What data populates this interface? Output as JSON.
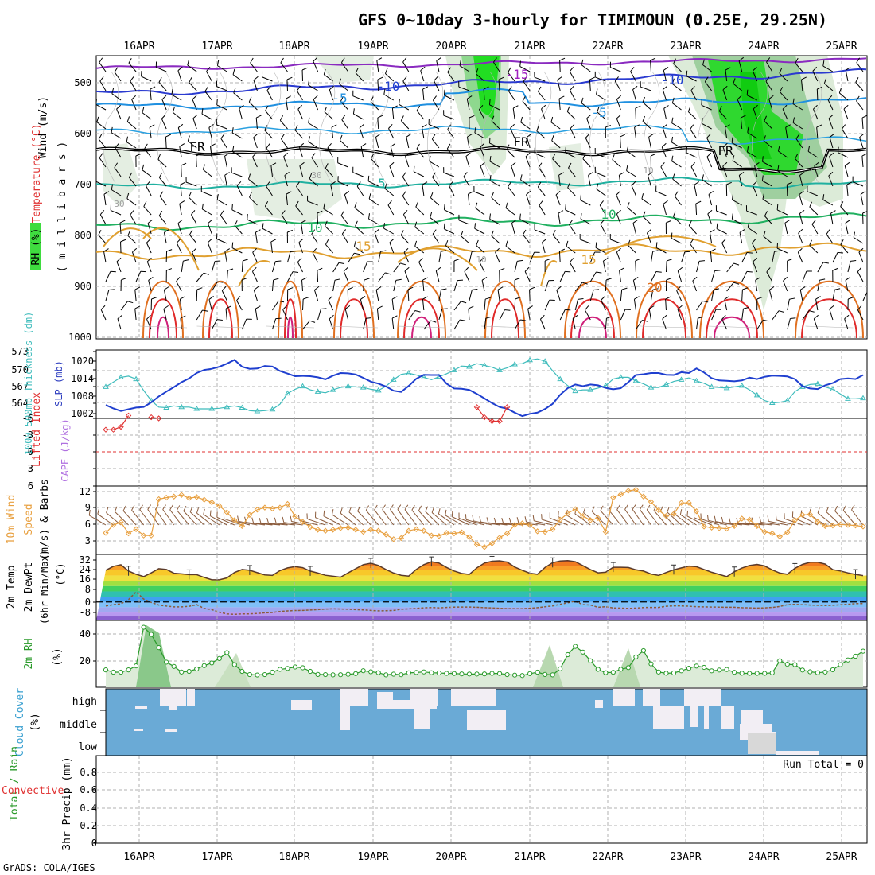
{
  "header": {
    "title": "GFS 0~10day 3-hourly for TIMIMOUN (0.25E, 29.25N)",
    "credit": "GrADS: COLA/IGES"
  },
  "days": [
    "16APR",
    "17APR",
    "18APR",
    "19APR",
    "20APR",
    "21APR",
    "22APR",
    "23APR",
    "24APR",
    "25APR"
  ],
  "colors": {
    "grid": "#b0b0b0",
    "thickness": "#3fbcbc",
    "slp": "#1f3fcf",
    "wind_speed": "#e8a040",
    "barb": "#8a5a3a",
    "rh2m": "#2a9a2a",
    "rh2m_fill": "#dcebd8",
    "cloud_bg": "#6aaad6",
    "cloud_fill": "#f2eef4",
    "lifted_index": "#e03030",
    "dewpoint": "#8a5a3a",
    "temp_line": "#5a3a2a",
    "fr_line": "#000000"
  },
  "panels": {
    "upper": {
      "ylabel_wind": "Wind (m/s)",
      "ylabel_temp": "Temperature (°C)",
      "ylabel_rh": "RH (%)",
      "ylabel_mb": "( m i l l i b a r s )",
      "levels": [
        500,
        600,
        700,
        800,
        900,
        1000
      ],
      "contour_labels": [
        {
          "text": "-15",
          "color": "#a020c0"
        },
        {
          "text": "-10",
          "color": "#2040d0"
        },
        {
          "text": "-10",
          "color": "#2040d0"
        },
        {
          "text": "-5",
          "color": "#2090e0"
        },
        {
          "text": "-5",
          "color": "#2090e0"
        },
        {
          "text": "FR",
          "color": "#000000"
        },
        {
          "text": "FR",
          "color": "#000000"
        },
        {
          "text": "FR",
          "color": "#000000"
        },
        {
          "text": "5",
          "color": "#20b0a0"
        },
        {
          "text": "10",
          "color": "#20b060"
        },
        {
          "text": "10",
          "color": "#20b060"
        },
        {
          "text": "15",
          "color": "#e0a030"
        },
        {
          "text": "15",
          "color": "#e0a030"
        },
        {
          "text": "20",
          "color": "#e07020"
        },
        {
          "text": "30",
          "color": "#a0a0a0"
        },
        {
          "text": "30",
          "color": "#a0a0a0"
        },
        {
          "text": "10",
          "color": "#a0a0a0"
        },
        {
          "text": "10",
          "color": "#a0a0a0"
        }
      ]
    },
    "thickness": {
      "ylabel_left": "1000-500mb Thickness (dm)",
      "ylabel_right": "SLP (mb)",
      "left_ticks": [
        "573",
        "570",
        "567",
        "564"
      ],
      "right_ticks": [
        "1020",
        "1014",
        "1008",
        "1002"
      ]
    },
    "stability": {
      "ylabel_li": "Lifted Index",
      "ylabel_cape": "CAPE (J/kg)",
      "ticks": [
        "-6",
        "-3",
        "0",
        "3",
        "6"
      ]
    },
    "wind10": {
      "ylabel_a": "10m Wind",
      "ylabel_b": "Speed",
      "ylabel_c": "(m/s) & Barbs",
      "ticks": [
        "12",
        "9",
        "6",
        "3"
      ]
    },
    "temp2m": {
      "ylabel_a": "2m Temp",
      "ylabel_b": "2m DewPt",
      "ylabel_c": "(6hr Min/Max)",
      "ylabel_unit": "(°C)",
      "ticks": [
        "32",
        "24",
        "16",
        "8",
        "0",
        "-8"
      ]
    },
    "rh2m": {
      "ylabel": "2m RH",
      "unit": "(%)",
      "ticks": [
        "40",
        "20"
      ]
    },
    "cloud": {
      "ylabel": "Cloud Cover",
      "unit": "(%)",
      "rows": [
        "high",
        "middle",
        "low"
      ]
    },
    "precip": {
      "ylabel_a": "Total / Rain",
      "ylabel_b": "Convective",
      "ylabel_c": "3hr Precip (mm)",
      "ticks": [
        "0.8",
        "0.6",
        "0.4",
        "0.2",
        "0"
      ],
      "run_total": "Run Total = 0"
    }
  },
  "chart_data": [
    {
      "type": "line",
      "title": "1000-500mb Thickness (dm) / SLP (mb)",
      "series": [
        {
          "name": "1000-500mb Thickness",
          "axis": "left",
          "ylim": [
            561.5,
            573
          ],
          "values": [
            566.8,
            567.6,
            568.4,
            568.6,
            568.1,
            566.2,
            564.5,
            563.4,
            563.3,
            563.6,
            563.4,
            563.4,
            563.1,
            563.1,
            563.1,
            563.2,
            563.4,
            563.6,
            563.3,
            562.8,
            562.7,
            562.8,
            563.0,
            563.9,
            565.7,
            566.4,
            566.9,
            566.3,
            566.0,
            565.8,
            566.3,
            566.7,
            566.9,
            566.8,
            566.7,
            566.4,
            566.2,
            566.9,
            568.0,
            568.9,
            569.1,
            568.8,
            568.4,
            568.0,
            568.5,
            569.0,
            569.6,
            570.3,
            570.2,
            570.7,
            570.4,
            570.1,
            569.6,
            570.0,
            570.6,
            570.7,
            571.3,
            571.5,
            571.1,
            569.5,
            568.1,
            567.0,
            566.1,
            566.3,
            566.3,
            566.6,
            567.0,
            568.1,
            568.4,
            568.4,
            567.8,
            567.3,
            566.7,
            566.7,
            567.2,
            567.7,
            568.0,
            568.3,
            567.8,
            567.4,
            566.8,
            566.7,
            566.6,
            566.8,
            567.0,
            566.3,
            565.4,
            564.5,
            564.1,
            564.2,
            564.5,
            566.0,
            566.8,
            567.2,
            567.3,
            566.8,
            566.4,
            565.6,
            564.8,
            564.8,
            564.9
          ]
        },
        {
          "name": "SLP",
          "axis": "right",
          "ylim": [
            1001,
            1025
          ],
          "values": [
            1005.7,
            1004.5,
            1003.6,
            1004.2,
            1004.8,
            1005.0,
            1006.6,
            1008.7,
            1010.4,
            1012.0,
            1013.7,
            1015.0,
            1016.9,
            1018.0,
            1018.4,
            1019.1,
            1020.2,
            1021.5,
            1019.1,
            1018.4,
            1018.5,
            1019.4,
            1019.2,
            1017.6,
            1016.7,
            1015.8,
            1015.9,
            1015.8,
            1015.4,
            1014.7,
            1016.0,
            1016.9,
            1016.8,
            1016.4,
            1015.2,
            1013.9,
            1013.2,
            1012.2,
            1010.7,
            1010.3,
            1012.4,
            1014.9,
            1016.3,
            1016.2,
            1016.2,
            1013.2,
            1011.5,
            1011.4,
            1011.0,
            1009.6,
            1008.0,
            1006.4,
            1005.0,
            1004.4,
            1003.0,
            1001.8,
            1002.6,
            1003.0,
            1004.3,
            1006.1,
            1009.3,
            1011.6,
            1012.9,
            1012.3,
            1012.9,
            1012.6,
            1011.7,
            1011.2,
            1011.6,
            1013.7,
            1016.2,
            1016.5,
            1016.9,
            1016.9,
            1016.3,
            1016.2,
            1017.2,
            1016.9,
            1018.5,
            1017.1,
            1015.1,
            1014.3,
            1014.2,
            1014.0,
            1014.3,
            1015.3,
            1014.8,
            1015.6,
            1016.0,
            1015.9,
            1015.7,
            1014.8,
            1012.3,
            1011.5,
            1011.3,
            1012.6,
            1013.4,
            1014.8,
            1015.0,
            1014.8,
            1016.2
          ]
        }
      ]
    },
    {
      "type": "line",
      "title": "Lifted Index",
      "ylim": [
        -6,
        6
      ],
      "series": [
        {
          "name": "Lifted Index",
          "segments": [
            {
              "start": 0,
              "values": [
                4.0,
                4.0,
                4.5,
                6.5
              ]
            },
            {
              "start": 6,
              "values": [
                6.2,
                6.0
              ]
            },
            {
              "start": 49,
              "values": [
                8.0,
                6.2,
                5.5,
                5.5,
                8.0
              ]
            }
          ]
        }
      ]
    },
    {
      "type": "line",
      "title": "10m Wind Speed (m/s)",
      "ylim": [
        0,
        13
      ],
      "series": [
        {
          "name": "10m Wind Speed",
          "values": [
            4.1,
            5.6,
            6.1,
            4.0,
            4.8,
            3.6,
            3.6,
            10.5,
            10.8,
            11.0,
            11.3,
            10.7,
            10.9,
            10.4,
            9.9,
            9.2,
            8.0,
            6.5,
            5.4,
            7.5,
            8.5,
            8.9,
            8.7,
            8.9,
            9.6,
            7.2,
            6.2,
            5.2,
            4.7,
            4.5,
            4.7,
            5.0,
            5.1,
            4.7,
            4.3,
            4.7,
            4.5,
            3.8,
            2.9,
            3.1,
            4.5,
            4.8,
            4.5,
            3.6,
            3.5,
            4.1,
            4.0,
            4.2,
            3.3,
            1.9,
            1.4,
            2.1,
            3.2,
            4.0,
            5.6,
            5.9,
            5.6,
            4.4,
            4.3,
            4.8,
            6.6,
            7.8,
            8.6,
            7.3,
            6.5,
            6.9,
            4.3,
            10.8,
            11.4,
            12.1,
            12.3,
            11.0,
            10.0,
            8.4,
            7.3,
            7.7,
            9.8,
            9.8,
            8.2,
            5.3,
            5.1,
            5.0,
            4.9,
            5.4,
            6.8,
            6.6,
            5.4,
            4.3,
            4.0,
            3.4,
            4.2,
            6.5,
            7.5,
            7.6,
            6.2,
            5.4,
            5.5,
            5.7,
            5.6,
            5.5,
            5.3
          ]
        }
      ]
    },
    {
      "type": "area",
      "title": "2m Temp / 2m DewPt (°C)",
      "ylim": [
        -14,
        36
      ],
      "series": [
        {
          "name": "2m Temp",
          "values": [
            24.0,
            27.0,
            28.2,
            23.5,
            21.0,
            19.2,
            22.0,
            25.2,
            24.7,
            21.8,
            21.3,
            20.7,
            20.7,
            18.6,
            16.8,
            16.8,
            18.2,
            22.3,
            24.6,
            24.0,
            22.2,
            20.5,
            20.1,
            23.8,
            25.8,
            26.8,
            26.0,
            23.4,
            21.9,
            20.2,
            19.5,
            18.8,
            22.0,
            25.2,
            28.3,
            29.4,
            27.7,
            24.6,
            21.9,
            20.2,
            19.6,
            24.7,
            28.3,
            30.5,
            29.5,
            26.2,
            23.5,
            21.6,
            20.9,
            25.9,
            29.5,
            30.9,
            31.2,
            30.2,
            26.5,
            24.0,
            21.8,
            21.0,
            26.2,
            29.8,
            31.0,
            31.3,
            30.5,
            27.5,
            24.5,
            22.1,
            22.5,
            26.3,
            26.3,
            26.1,
            24.4,
            23.4,
            21.2,
            20.1,
            22.3,
            24.4,
            25.8,
            27.2,
            26.7,
            24.6,
            22.5,
            20.9,
            19.2,
            22.9,
            25.7,
            27.6,
            28.5,
            27.3,
            24.3,
            21.9,
            21.0,
            25.5,
            28.5,
            30.1,
            30.1,
            28.7,
            24.5,
            23.5,
            22.0,
            20.9,
            20.0
          ]
        },
        {
          "name": "2m DewPt",
          "values": [
            -3.0,
            -2.0,
            -1.4,
            1.8,
            7.6,
            2.2,
            -0.3,
            -2.3,
            -3.1,
            -3.7,
            -3.7,
            -3.3,
            -2.0,
            -4.9,
            -5.8,
            -7.8,
            -9.0,
            -9.4,
            -9.0,
            -9.0,
            -8.7,
            -8.2,
            -8.0,
            -7.2,
            -6.8,
            -6.5,
            -6.4,
            -6.1,
            -5.8,
            -5.4,
            -5.2,
            -5.3,
            -5.5,
            -5.8,
            -6.0,
            -6.4,
            -6.7,
            -6.6,
            -6.4,
            -5.5,
            -5.2,
            -4.9,
            -4.4,
            -4.2,
            -4.4,
            -4.1,
            -3.9,
            -3.8,
            -3.8,
            -4.0,
            -4.3,
            -4.5,
            -4.8,
            -5.0,
            -5.1,
            -5.1,
            -4.8,
            -4.3,
            -3.6,
            -3.0,
            -1.8,
            -0.6,
            0.6,
            -2.0,
            -2.3,
            -4.0,
            -3.6,
            -4.5,
            -4.6,
            -4.9,
            -4.6,
            -4.2,
            -4.1,
            -4.1,
            -3.2,
            -2.9,
            -3.0,
            -3.2,
            -3.6,
            -3.7,
            -3.8,
            -3.9,
            -4.0,
            -4.0,
            -4.3,
            -4.4,
            -4.6,
            -4.4,
            -4.1,
            -3.4,
            -2.1,
            -1.8,
            -2.1,
            -2.3,
            -2.5,
            -2.7,
            -2.5,
            -2.1,
            -1.7,
            -1.2,
            -1.2
          ]
        }
      ]
    },
    {
      "type": "area",
      "title": "2m RH (%)",
      "ylim": [
        0,
        50
      ],
      "series": [
        {
          "name": "2m RH",
          "values": [
            13.0,
            11.3,
            11.3,
            13.0,
            16.0,
            44.9,
            39.6,
            29.7,
            18.8,
            15.6,
            11.4,
            11.9,
            13.7,
            16.2,
            18.2,
            21.5,
            25.9,
            16.9,
            11.9,
            9.5,
            9.2,
            9.5,
            11.3,
            13.4,
            14.1,
            15.2,
            14.6,
            11.9,
            9.6,
            9.5,
            9.3,
            9.4,
            9.7,
            10.2,
            12.4,
            11.6,
            10.9,
            9.3,
            9.8,
            9.4,
            10.8,
            11.1,
            11.5,
            10.9,
            10.7,
            10.4,
            10.3,
            10.0,
            9.9,
            9.9,
            10.0,
            10.4,
            10.3,
            9.5,
            9.1,
            8.8,
            10.2,
            11.3,
            9.6,
            9.3,
            13.8,
            24.4,
            30.6,
            26.3,
            19.8,
            13.4,
            10.9,
            11.2,
            13.5,
            14.7,
            22.7,
            27.4,
            17.5,
            11.4,
            10.5,
            10.7,
            12.3,
            14.2,
            15.9,
            14.9,
            12.3,
            12.9,
            13.3,
            11.2,
            10.5,
            10.4,
            10.4,
            10.4,
            10.8,
            19.8,
            17.2,
            16.9,
            12.9,
            11.6,
            10.9,
            11.4,
            13.1,
            16.9,
            20.4,
            23.2,
            27.0
          ]
        }
      ]
    },
    {
      "type": "bar",
      "title": "3hr Precip (mm)",
      "ylim": [
        0,
        1
      ],
      "values": [],
      "run_total": 0
    }
  ]
}
